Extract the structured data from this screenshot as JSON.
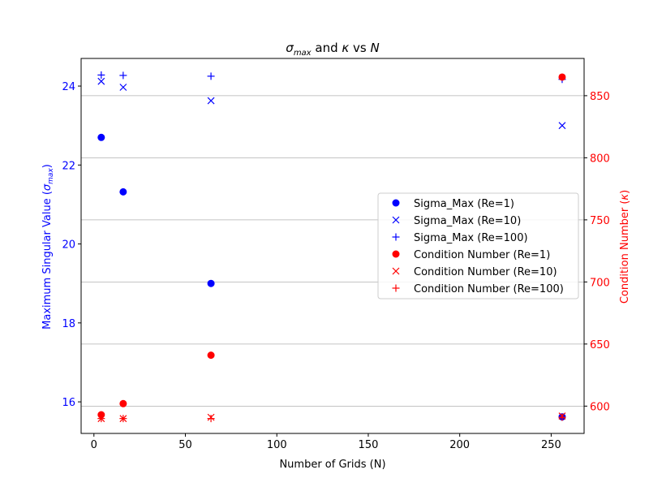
{
  "chart_data": {
    "type": "scatter",
    "title": "σmax and κ vs N",
    "xlabel": "Number of Grids (N)",
    "ylabel_left": "Maximum Singular Value (σmax)",
    "ylabel_right": "Condition Number (κ)",
    "xlim": [
      -7,
      268
    ],
    "ylim_left": [
      15.2,
      24.7
    ],
    "ylim_right": [
      578,
      880
    ],
    "x_ticks": [
      0,
      50,
      100,
      150,
      200,
      250
    ],
    "y_left_ticks": [
      16,
      18,
      20,
      22,
      24
    ],
    "y_right_ticks": [
      600,
      650,
      700,
      750,
      800,
      850
    ],
    "grid": "horizontal lines at right-axis ticks",
    "legend_position": "center-right",
    "left_color": "#0000ff",
    "right_color": "#ff0000",
    "x": [
      4,
      16,
      64,
      256
    ],
    "series": [
      {
        "name": "Sigma_Max (Re=1)",
        "axis": "left",
        "marker": "circle",
        "color": "#0000ff",
        "values": [
          22.7,
          21.32,
          19.0,
          15.62
        ]
      },
      {
        "name": "Sigma_Max (Re=10)",
        "axis": "left",
        "marker": "x",
        "color": "#0000ff",
        "values": [
          24.12,
          23.97,
          23.63,
          23.0
        ]
      },
      {
        "name": "Sigma_Max (Re=100)",
        "axis": "left",
        "marker": "plus",
        "color": "#0000ff",
        "values": [
          24.28,
          24.27,
          24.25,
          24.17
        ]
      },
      {
        "name": "Condition Number (Re=1)",
        "axis": "right",
        "marker": "circle",
        "color": "#ff0000",
        "values": [
          593,
          602,
          641,
          865
        ]
      },
      {
        "name": "Condition Number (Re=10)",
        "axis": "right",
        "marker": "x",
        "color": "#ff0000",
        "values": [
          590,
          590,
          591,
          592
        ]
      },
      {
        "name": "Condition Number (Re=100)",
        "axis": "right",
        "marker": "plus",
        "color": "#ff0000",
        "values": [
          590,
          590,
          590,
          591
        ]
      }
    ]
  }
}
